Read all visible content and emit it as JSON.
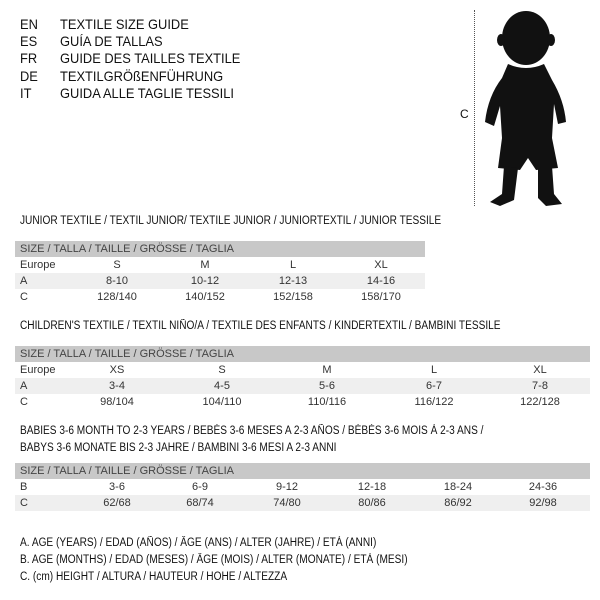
{
  "title_lines": [
    {
      "code": "EN",
      "text": "TEXTILE SIZE GUIDE"
    },
    {
      "code": "ES",
      "text": "GUÍA DE TALLAS"
    },
    {
      "code": "FR",
      "text": "GUIDE DES TAILLES TEXTILE"
    },
    {
      "code": "DE",
      "text": "TEXTILGRÖßENFÜHRUNG"
    },
    {
      "code": "IT",
      "text": "GUIDA ALLE TAGLIE TESSILI"
    }
  ],
  "figure": {
    "label": "C",
    "icon": "baby-silhouette-icon"
  },
  "size_header": "SIZE / TALLA / TAILLE / GRÖSSE / TAGLIA",
  "tables": [
    {
      "heading": "JUNIOR TEXTILE / TEXTIL JUNIOR/ TEXTILE JUNIOR / JUNIORTEXTIL / JUNIOR TESSILE",
      "rows": [
        [
          "Europe",
          "S",
          "M",
          "L",
          "XL"
        ],
        [
          "A",
          "8-10",
          "10-12",
          "12-13",
          "14-16"
        ],
        [
          "C",
          "128/140",
          "140/152",
          "152/158",
          "158/170"
        ]
      ]
    },
    {
      "heading": "CHILDREN'S TEXTILE / TEXTIL NIÑO/A / TEXTILE DES ENFANTS / KINDERTEXTIL / BAMBINI TESSILE",
      "rows": [
        [
          "Europe",
          "XS",
          "S",
          "M",
          "L",
          "XL"
        ],
        [
          "A",
          "3-4",
          "4-5",
          "5-6",
          "6-7",
          "7-8"
        ],
        [
          "C",
          "98/104",
          "104/110",
          "110/116",
          "116/122",
          "122/128"
        ]
      ]
    },
    {
      "heading": "BABIES 3-6 MONTH TO 2-3 YEARS / BEBÉS 3-6 MESES A 2-3 AÑOS / BÉBÉS 3-6 MOIS À 2-3 ANS /",
      "heading2": "BABYS 3-6 MONATE BIS 2-3 JAHRE / BAMBINI 3-6 MESI A 2-3 ANNI",
      "rows": [
        [
          "B",
          "3-6",
          "6-9",
          "9-12",
          "12-18",
          "18-24",
          "24-36"
        ],
        [
          "C",
          "62/68",
          "68/74",
          "74/80",
          "80/86",
          "86/92",
          "92/98"
        ]
      ]
    }
  ],
  "legend": [
    "A. AGE (YEARS) / EDAD (AÑOS) / ÂGE (ANS) / ALTER (JAHRE) / ETÀ (ANNI)",
    "B. AGE (MONTHS) / EDAD (MESES) / ÂGE (MOIS) / ALTER (MONATE) / ETÀ (MESI)",
    "C. (cm) HEIGHT / ALTURA / HAUTEUR / HÖHE / ALTEZZA"
  ]
}
